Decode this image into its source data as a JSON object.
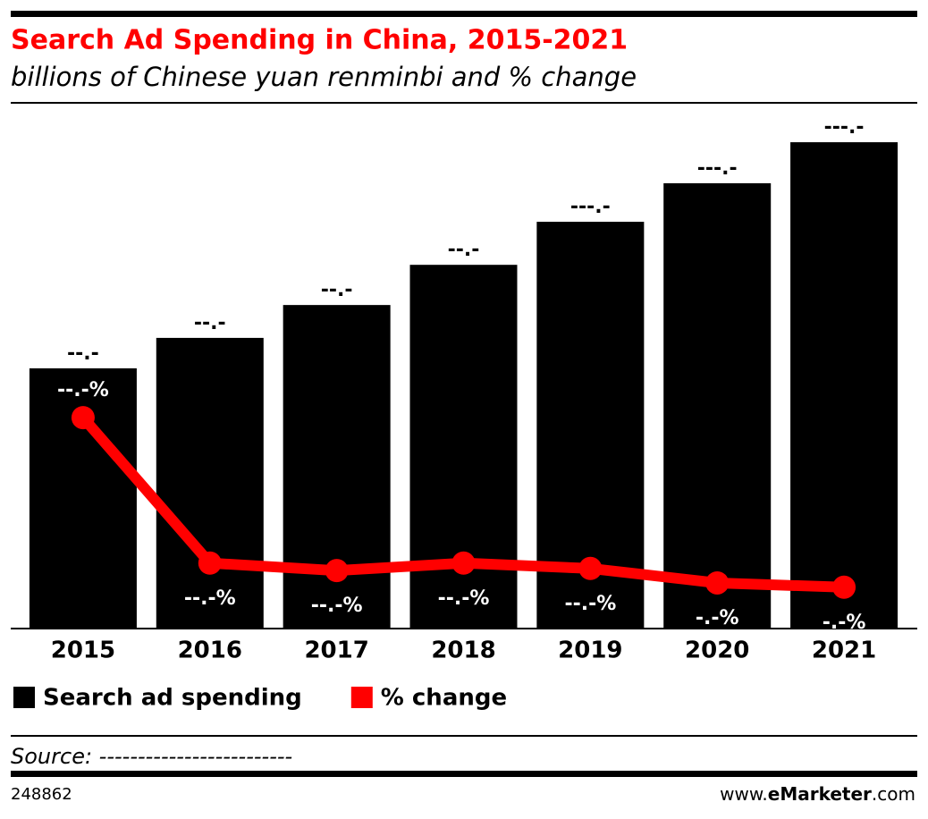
{
  "chart_data": {
    "type": "bar_line",
    "title": "Search Ad Spending in China, 2015-2021",
    "subtitle": "billions of Chinese yuan renminbi and % change",
    "categories": [
      "2015",
      "2016",
      "2017",
      "2018",
      "2019",
      "2020",
      "2021"
    ],
    "series": [
      {
        "name": "Search ad spending",
        "color": "#000000",
        "type": "bar",
        "values": [
          64.1,
          71.6,
          79.7,
          89.6,
          100.2,
          109.7,
          119.8
        ],
        "value_labels": [
          "--.-",
          "--.-",
          "--.-",
          "--.-",
          "---.-",
          "---.-",
          "---.-"
        ]
      },
      {
        "name": "% change",
        "color": "#ff0000",
        "type": "line",
        "axis": "y2",
        "values": [
          39.3,
          12.2,
          10.8,
          12.2,
          11.2,
          8.5,
          7.7
        ],
        "value_labels": [
          "--.-%",
          "--.-%",
          "--.-%",
          "--.-%",
          "--.-%",
          "-.-%",
          "-.-%"
        ]
      }
    ],
    "ylim": [
      0,
      124
    ],
    "y2lim": [
      0,
      93.8
    ],
    "source": "Source: -------------------------",
    "chart_id": "248862",
    "site": {
      "prefix": "www.",
      "brand": "eMarketer",
      "suffix": ".com"
    }
  }
}
